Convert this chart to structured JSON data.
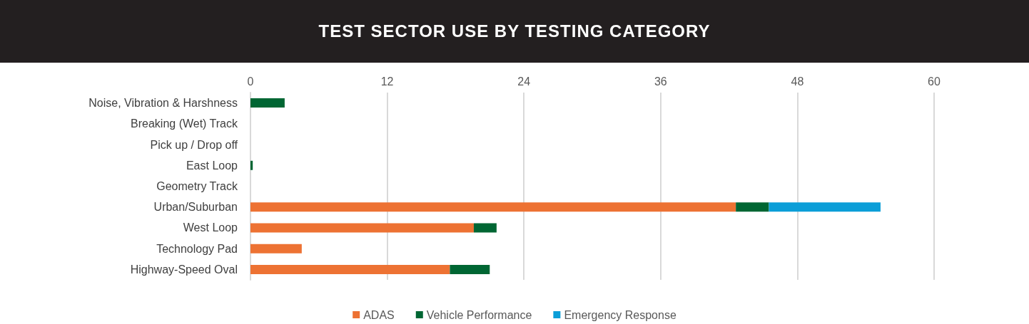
{
  "chart_data": {
    "type": "bar",
    "title": "TEST SECTOR USE BY TESTING CATEGORY",
    "orientation": "horizontal",
    "stacked": true,
    "categories": [
      "Noise, Vibration & Harshness",
      "Breaking (Wet) Track",
      "Pick up / Drop off",
      "East Loop",
      "Geometry Track",
      "Urban/Suburban",
      "West Loop",
      "Technology Pad",
      "Highway-Speed Oval"
    ],
    "series": [
      {
        "name": "ADAS",
        "color": "#ed7233",
        "values": [
          0,
          0,
          0,
          0,
          0,
          42.6,
          19.6,
          4.5,
          17.5
        ]
      },
      {
        "name": "Vehicle Performance",
        "color": "#006633",
        "values": [
          3.0,
          0,
          0,
          0.2,
          0,
          2.9,
          2.0,
          0,
          3.5
        ]
      },
      {
        "name": "Emergency Response",
        "color": "#0b9ed8",
        "values": [
          0,
          0,
          0,
          0,
          0,
          9.8,
          0,
          0,
          0
        ]
      }
    ],
    "xlim": [
      0,
      60
    ],
    "xticks": [
      0,
      12,
      24,
      36,
      48,
      60
    ],
    "grid": "x",
    "legend": "bottom"
  }
}
